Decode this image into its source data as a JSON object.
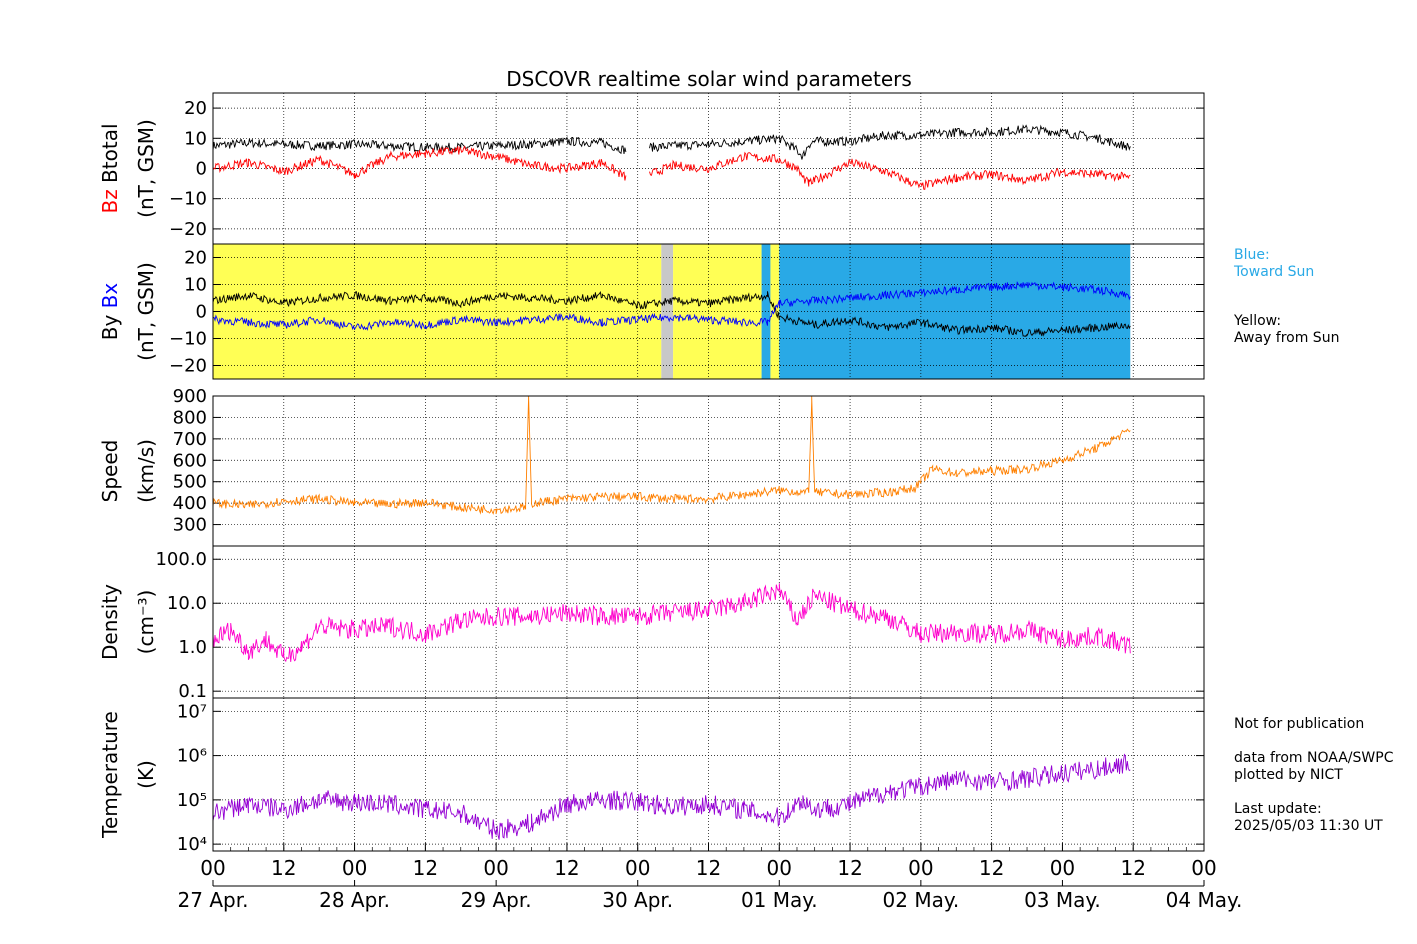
{
  "chart_data": {
    "type": "line",
    "title": "DSCOVR realtime solar wind parameters",
    "x_axis": {
      "hour_ticks": [
        "00",
        "12",
        "00",
        "12",
        "00",
        "12",
        "00",
        "12",
        "00",
        "12",
        "00",
        "12",
        "00",
        "12",
        "00"
      ],
      "date_labels": [
        "27 Apr.",
        "28 Apr.",
        "29 Apr.",
        "30 Apr.",
        "01 May.",
        "02 May.",
        "03 May.",
        "04 May."
      ],
      "range_hours": [
        0,
        168
      ],
      "data_end_hour": 155.5
    },
    "panels": [
      {
        "id": "btotal",
        "ylabel_parts": [
          {
            "text": "Bz",
            "color": "#ff0000"
          },
          {
            "text": "Btotal",
            "color": "#000000"
          }
        ],
        "ylabel_units": "(nT, GSM)",
        "ylim": [
          -25,
          25
        ],
        "yticks": [
          "20",
          "10",
          "0",
          "−10",
          "−20"
        ],
        "ytick_values": [
          20,
          10,
          0,
          -10,
          -20
        ],
        "series": [
          {
            "key": "Btotal",
            "color": "#000000",
            "x": [
              0,
              6,
              12,
              18,
              24,
              30,
              36,
              42,
              48,
              54,
              60,
              66,
              70,
              72,
              74,
              78,
              84,
              90,
              96,
              99,
              100,
              101,
              102,
              108,
              114,
              120,
              126,
              132,
              138,
              144,
              150,
              155.5
            ],
            "y": [
              7.5,
              8.5,
              8,
              7.5,
              8,
              7.5,
              7,
              7,
              7.5,
              8,
              9,
              8.5,
              6,
              null,
              7,
              7.5,
              8,
              9,
              10,
              6,
              4,
              8,
              9,
              9,
              11,
              11,
              12,
              12,
              13,
              12,
              10,
              7
            ]
          },
          {
            "key": "Bz",
            "color": "#ff0000",
            "x": [
              0,
              6,
              12,
              18,
              24,
              30,
              36,
              42,
              48,
              54,
              60,
              66,
              70,
              72,
              74,
              78,
              84,
              90,
              96,
              99,
              100,
              101,
              102,
              108,
              114,
              120,
              126,
              132,
              138,
              144,
              150,
              155.5
            ],
            "y": [
              0,
              2,
              -1,
              3,
              -2,
              4,
              5,
              6,
              4,
              1,
              0,
              2,
              -3,
              null,
              -2,
              1,
              0,
              4,
              3,
              0,
              -3,
              -5,
              -4,
              2,
              -1,
              -6,
              -3,
              -2,
              -4,
              -1,
              -2,
              -3
            ]
          }
        ]
      },
      {
        "id": "bxby",
        "ylabel_parts": [
          {
            "text": "By",
            "color": "#000000"
          },
          {
            "text": "Bx",
            "color": "#0000ff"
          }
        ],
        "ylabel_units": "(nT, GSM)",
        "ylim": [
          -25,
          25
        ],
        "yticks": [
          "20",
          "10",
          "0",
          "−10",
          "−20"
        ],
        "ytick_values": [
          20,
          10,
          0,
          -10,
          -20
        ],
        "background_sectors": [
          {
            "from": 0,
            "to": 76,
            "color": "#ffff55"
          },
          {
            "from": 76,
            "to": 78,
            "color": "#c8c8c8"
          },
          {
            "from": 78,
            "to": 93,
            "color": "#ffff55"
          },
          {
            "from": 93,
            "to": 94.5,
            "color": "#29a9e6"
          },
          {
            "from": 94.5,
            "to": 96,
            "color": "#ffff55"
          },
          {
            "from": 96,
            "to": 155.5,
            "color": "#29a9e6"
          }
        ],
        "series": [
          {
            "key": "By",
            "color": "#000000",
            "x": [
              0,
              6,
              12,
              18,
              24,
              30,
              36,
              42,
              48,
              54,
              60,
              66,
              72,
              78,
              84,
              90,
              94,
              96,
              102,
              108,
              114,
              120,
              126,
              132,
              138,
              144,
              150,
              155.5
            ],
            "y": [
              4,
              6,
              3,
              5,
              6,
              4,
              5,
              3,
              6,
              5,
              4,
              6,
              2,
              4,
              3,
              5,
              6,
              -2,
              -5,
              -3,
              -6,
              -4,
              -7,
              -6,
              -8,
              -7,
              -6,
              -5
            ]
          },
          {
            "key": "Bx",
            "color": "#0000ff",
            "x": [
              0,
              6,
              12,
              18,
              24,
              30,
              36,
              42,
              48,
              54,
              60,
              66,
              72,
              78,
              84,
              90,
              94,
              96,
              102,
              108,
              114,
              120,
              126,
              132,
              138,
              144,
              150,
              155.5
            ],
            "y": [
              -3,
              -4,
              -5,
              -3,
              -6,
              -4,
              -5,
              -3,
              -4,
              -3,
              -2,
              -4,
              -3,
              -2,
              -3,
              -4,
              -4,
              3,
              4,
              5,
              6,
              7,
              8,
              9,
              10,
              9,
              8,
              6
            ]
          }
        ]
      },
      {
        "id": "speed",
        "ylabel_parts": [
          {
            "text": "Speed",
            "color": "#000000"
          }
        ],
        "ylabel_units": "(km/s)",
        "ylim": [
          200,
          900
        ],
        "yticks": [
          "900",
          "800",
          "700",
          "600",
          "500",
          "400",
          "300"
        ],
        "ytick_values": [
          900,
          800,
          700,
          600,
          500,
          400,
          300
        ],
        "series": [
          {
            "key": "Speed",
            "color": "#ff8000",
            "x": [
              0,
              6,
              12,
              18,
              24,
              30,
              36,
              42,
              48,
              53,
              53.5,
              54,
              60,
              66,
              72,
              78,
              84,
              90,
              96,
              101,
              101.5,
              102,
              108,
              114,
              119,
              120,
              122,
              126,
              132,
              138,
              144,
              150,
              155.5
            ],
            "y": [
              400,
              390,
              410,
              420,
              400,
              395,
              405,
              380,
              370,
              380,
              880,
              400,
              420,
              430,
              430,
              420,
              420,
              440,
              460,
              450,
              890,
              450,
              440,
              450,
              470,
              500,
              560,
              540,
              550,
              560,
              600,
              660,
              740
            ]
          }
        ]
      },
      {
        "id": "density",
        "ylabel_parts": [
          {
            "text": "Density",
            "color": "#000000"
          }
        ],
        "ylabel_units": "(cm⁻³)",
        "scale": "log",
        "ylim": [
          0.07,
          200
        ],
        "yticks": [
          "100.0",
          "10.0",
          "1.0",
          "0.1"
        ],
        "ytick_values": [
          100,
          10,
          1,
          0.1
        ],
        "series": [
          {
            "key": "Density",
            "color": "#ff00cc",
            "x": [
              0,
              3,
              6,
              9,
              12,
              15,
              18,
              24,
              30,
              36,
              42,
              48,
              54,
              60,
              66,
              72,
              78,
              84,
              90,
              96,
              99,
              102,
              108,
              114,
              120,
              126,
              132,
              138,
              144,
              150,
              155.5
            ],
            "y": [
              1.5,
              2.5,
              0.8,
              1.5,
              0.6,
              1.0,
              3.0,
              2.5,
              3.0,
              2.0,
              4.0,
              5.0,
              5.0,
              6.0,
              5.0,
              5.0,
              6.0,
              7.0,
              10.0,
              20.0,
              4.0,
              15.0,
              7.0,
              5.0,
              2.0,
              2.2,
              2.0,
              2.5,
              1.5,
              1.8,
              1.0
            ]
          }
        ]
      },
      {
        "id": "temperature",
        "ylabel_parts": [
          {
            "text": "Temperature",
            "color": "#000000"
          }
        ],
        "ylabel_units": "(K)",
        "scale": "log",
        "ylim": [
          7000,
          20000000
        ],
        "yticks": [
          "10⁷",
          "10⁶",
          "10⁵",
          "10⁴"
        ],
        "ytick_values": [
          10000000,
          1000000,
          100000,
          10000
        ],
        "series": [
          {
            "key": "Temperature",
            "color": "#9400d3",
            "x": [
              0,
              6,
              12,
              18,
              24,
              30,
              36,
              42,
              48,
              54,
              60,
              66,
              72,
              78,
              84,
              90,
              96,
              100,
              102,
              108,
              114,
              120,
              126,
              132,
              138,
              144,
              150,
              155.5
            ],
            "y": [
              50000,
              80000,
              60000,
              100000,
              90000,
              80000,
              60000,
              50000,
              20000,
              30000,
              80000,
              100000,
              90000,
              70000,
              80000,
              60000,
              40000,
              100000,
              60000,
              80000,
              150000,
              200000,
              300000,
              250000,
              300000,
              400000,
              500000,
              700000
            ]
          }
        ]
      }
    ]
  },
  "side_notes": {
    "polarity_blue": "Blue:\nToward Sun",
    "polarity_blue_color": "#29a9e6",
    "polarity_yellow": "Yellow:\nAway from Sun",
    "footer": "Not for publication\n\ndata from NOAA/SWPC\nplotted by NICT\n\nLast update:\n2025/05/03 11:30 UT"
  }
}
